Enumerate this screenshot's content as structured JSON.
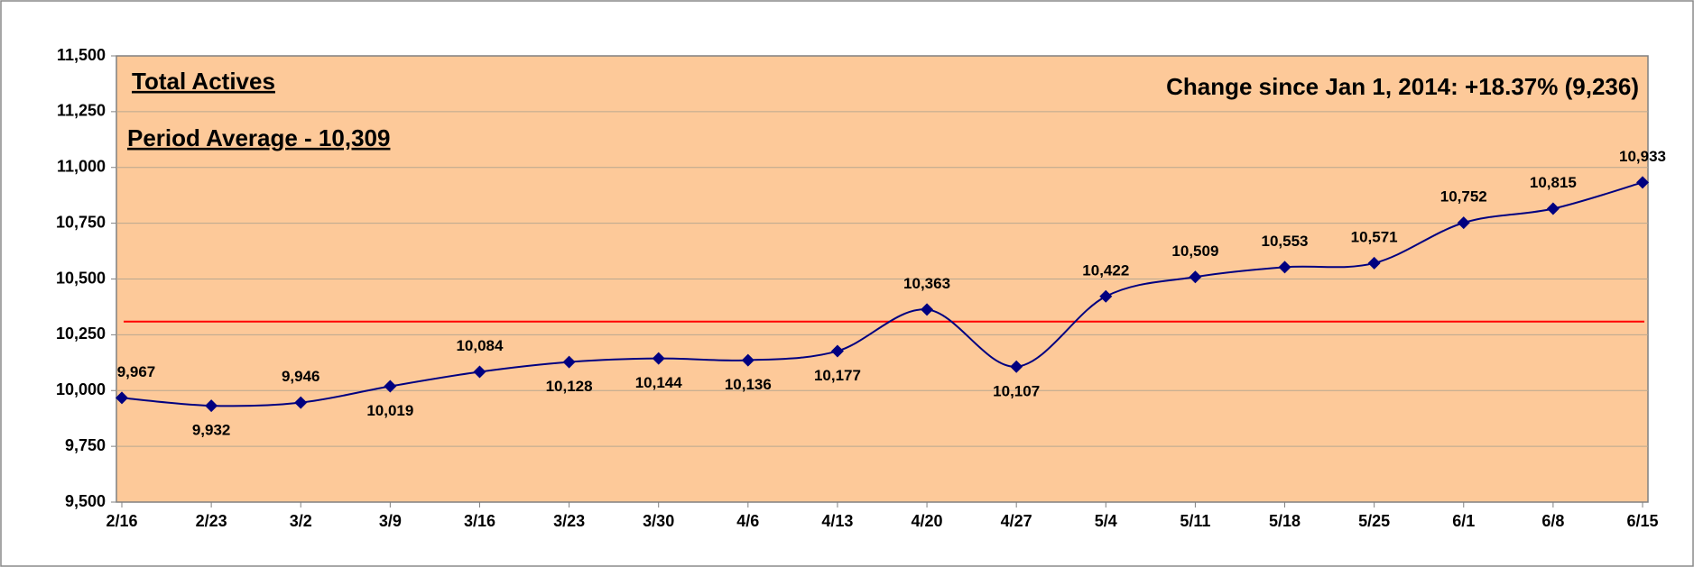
{
  "chart_data": {
    "type": "line",
    "title": "Total Actives",
    "annotations": [
      "Period Average - 10,309",
      "Change since Jan 1, 2014: +18.37%  (9,236)"
    ],
    "average": 10309,
    "average_color": "#ff0000",
    "categories": [
      "2/16",
      "2/23",
      "3/2",
      "3/9",
      "3/16",
      "3/23",
      "3/30",
      "4/6",
      "4/13",
      "4/20",
      "4/27",
      "5/4",
      "5/11",
      "5/18",
      "5/25",
      "6/1",
      "6/8",
      "6/15"
    ],
    "series": [
      {
        "name": "Total Actives",
        "color": "#000080",
        "values": [
          9967,
          9932,
          9946,
          10019,
          10084,
          10128,
          10144,
          10136,
          10177,
          10363,
          10107,
          10422,
          10509,
          10553,
          10571,
          10752,
          10815,
          10933
        ],
        "value_labels": [
          "9,967",
          "9,932",
          "9,946",
          "10,019",
          "10,084",
          "10,128",
          "10,144",
          "10,136",
          "10,177",
          "10,363",
          "10,107",
          "10,422",
          "10,509",
          "10,553",
          "10,571",
          "10,752",
          "10,815",
          "10,933"
        ]
      }
    ],
    "ylim": [
      9500,
      11500
    ],
    "yticks": [
      {
        "value": 9500,
        "label": "9,500"
      },
      {
        "value": 9750,
        "label": "9,750"
      },
      {
        "value": 10000,
        "label": "10,000"
      },
      {
        "value": 10250,
        "label": "10,250"
      },
      {
        "value": 10500,
        "label": "10,500"
      },
      {
        "value": 10750,
        "label": "10,750"
      },
      {
        "value": 11000,
        "label": "11,000"
      },
      {
        "value": 11250,
        "label": "11,250"
      },
      {
        "value": 11500,
        "label": "11,500"
      }
    ],
    "grid": true,
    "smooth": true
  }
}
